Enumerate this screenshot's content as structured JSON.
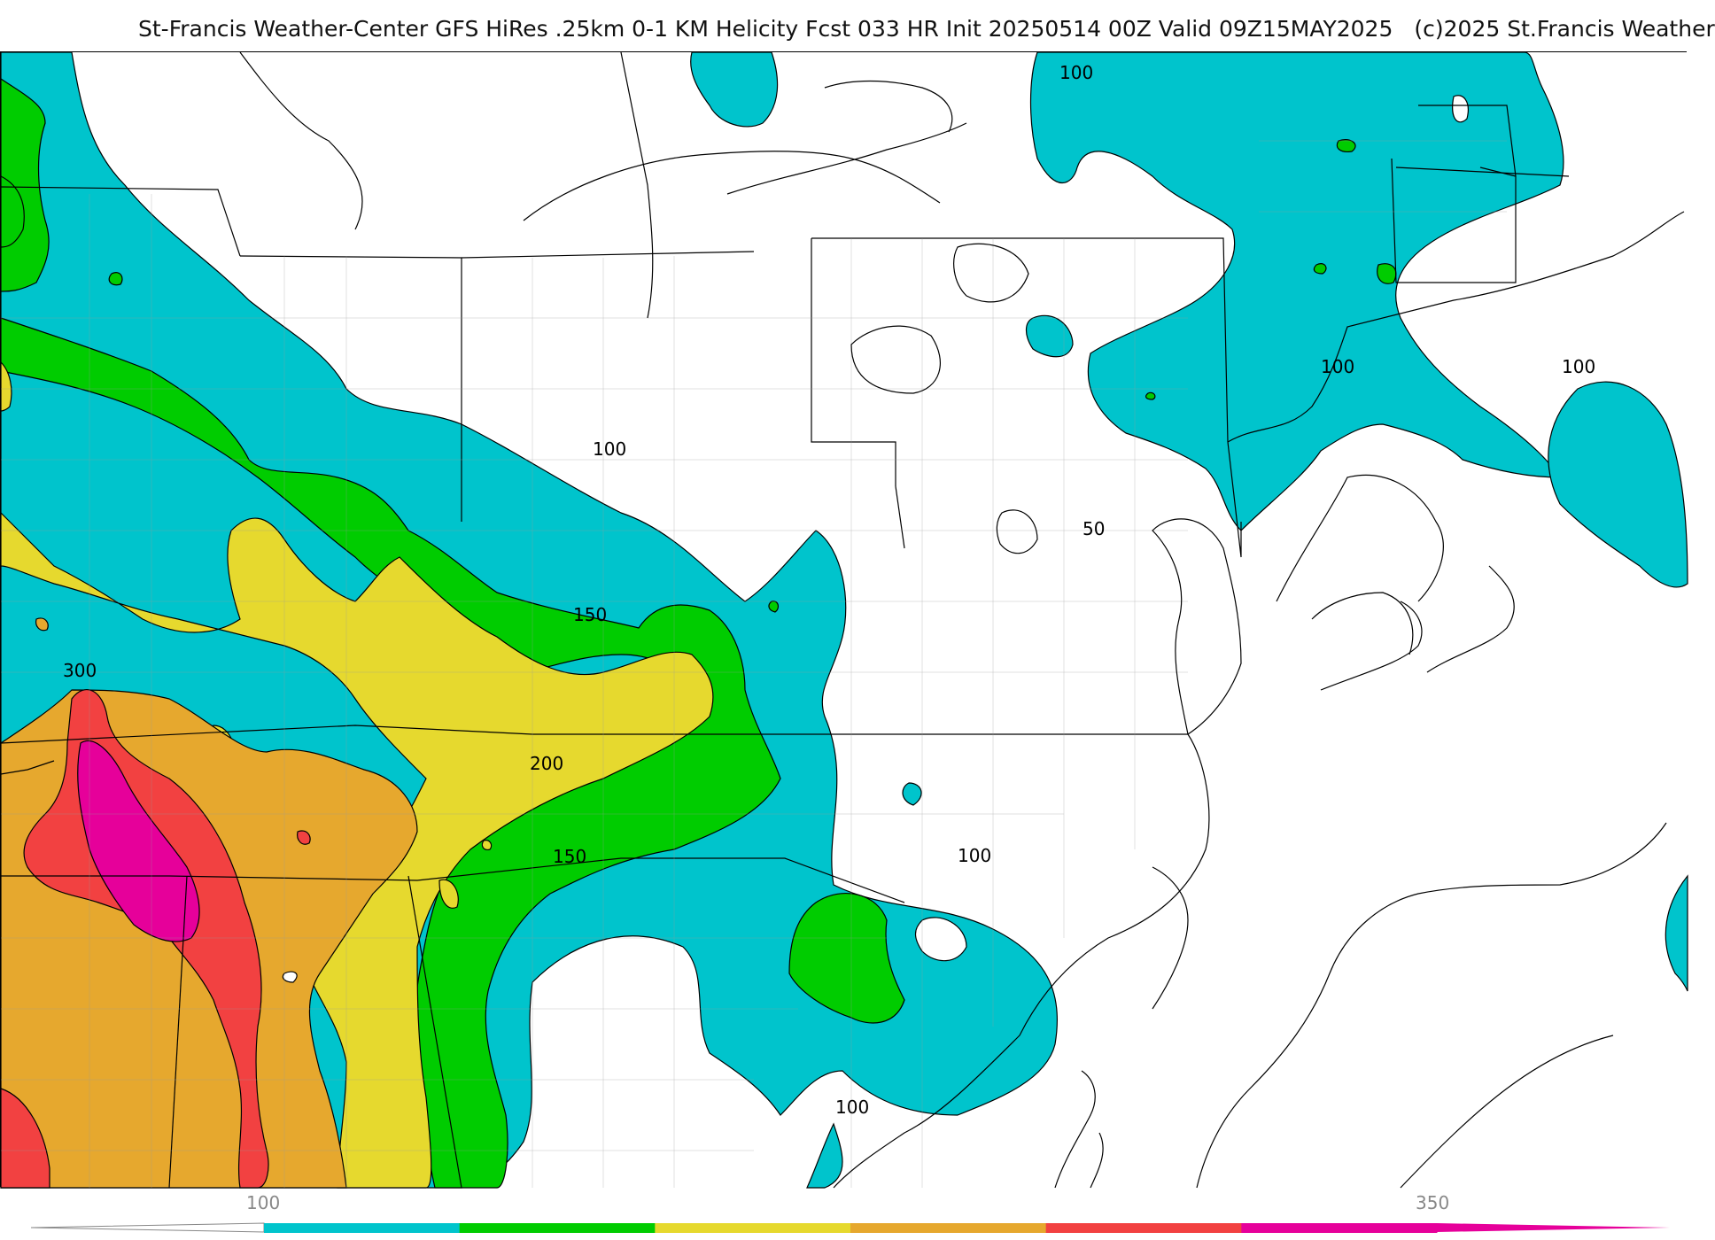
{
  "header": {
    "title": "St-Francis Weather-Center GFS HiRes .25km 0-1 KM Helicity Fcst 033 HR Init 20250514 00Z  Valid 09Z15MAY2025",
    "copyright": "(c)2025 St.Francis Weather"
  },
  "map": {
    "contour_labels": [
      "100",
      "100",
      "100",
      "100",
      "150",
      "200",
      "150",
      "50",
      "300",
      "100",
      "100"
    ],
    "colors": {
      "c100": "#00c4cc",
      "c150": "#00cc00",
      "c200": "#e6d92e",
      "c250": "#e6a82e",
      "c300": "#f24141",
      "c350": "#e6009a"
    }
  },
  "legend": {
    "ticks": [
      "100",
      "350"
    ],
    "colors": [
      "#00c4cc",
      "#00cc00",
      "#e6d92e",
      "#e6a82e",
      "#f24141",
      "#e6009a"
    ]
  }
}
